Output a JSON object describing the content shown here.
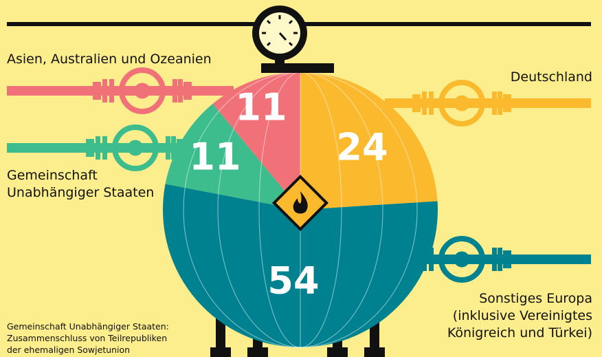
{
  "chart_data": {
    "type": "pie",
    "categories": [
      "Deutschland",
      "Sonstiges Europa\n(inklusive Vereinigtes\nKönigreich und Türkei)",
      "Gemeinschaft\nUnabhängiger Staaten",
      "Asien, Australien und Ozeanien"
    ],
    "values": [
      24,
      54,
      11,
      11
    ],
    "colors": [
      "#fbb92d",
      "#00818f",
      "#3dbc8e",
      "#f07178"
    ],
    "note": "Gemeinschaft Unabhängiger Staaten:\nZusammenschluss von Teilrepubliken\nder ehemaligen Sowjetunion"
  }
}
